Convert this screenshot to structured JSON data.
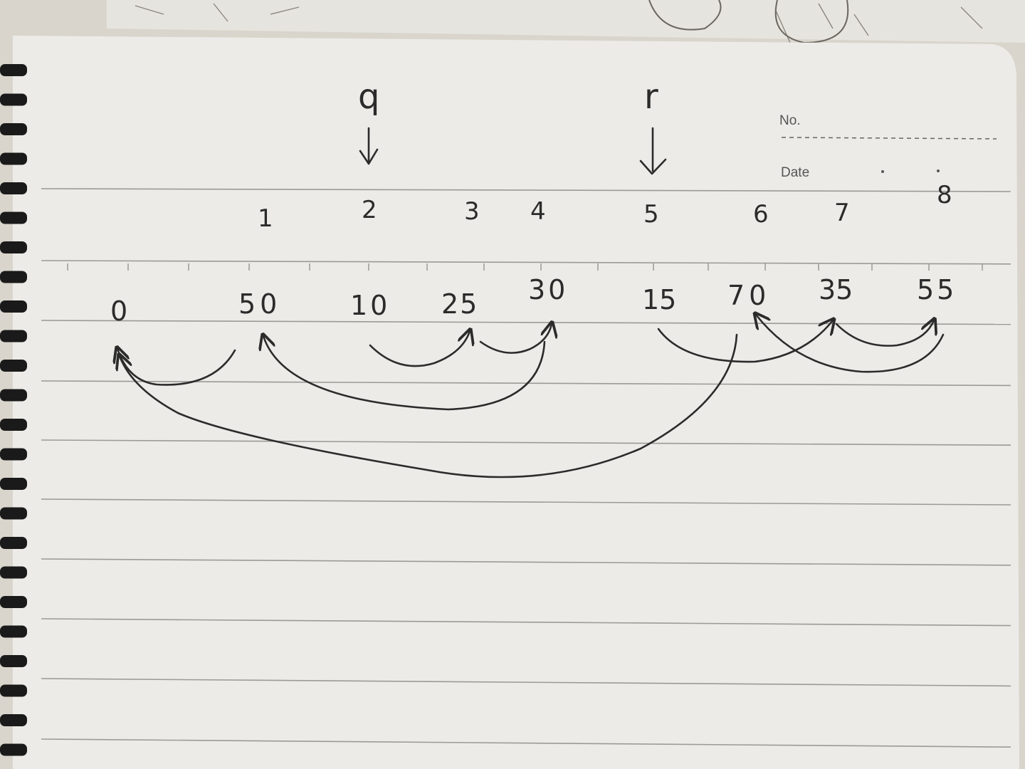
{
  "header": {
    "no_label": "No.",
    "date_label": "Date"
  },
  "pointers": {
    "q": {
      "label": "q",
      "index": 2
    },
    "r": {
      "label": "r",
      "index": 5
    }
  },
  "indices": [
    "1",
    "2",
    "3",
    "4",
    "5",
    "6",
    "7",
    "8"
  ],
  "values": [
    "0",
    "50",
    "10",
    "25",
    "30",
    "15",
    "70",
    "35",
    "55"
  ],
  "colors": {
    "ink": "#2b2b2b",
    "paper": "#ecebe7",
    "rule": "#9c9a96",
    "background": "#d9d5cc",
    "binding": "#1a1a1a"
  },
  "icons": [
    "spiral-binding-icon",
    "down-arrow-icon",
    "curved-arrow-icon"
  ]
}
